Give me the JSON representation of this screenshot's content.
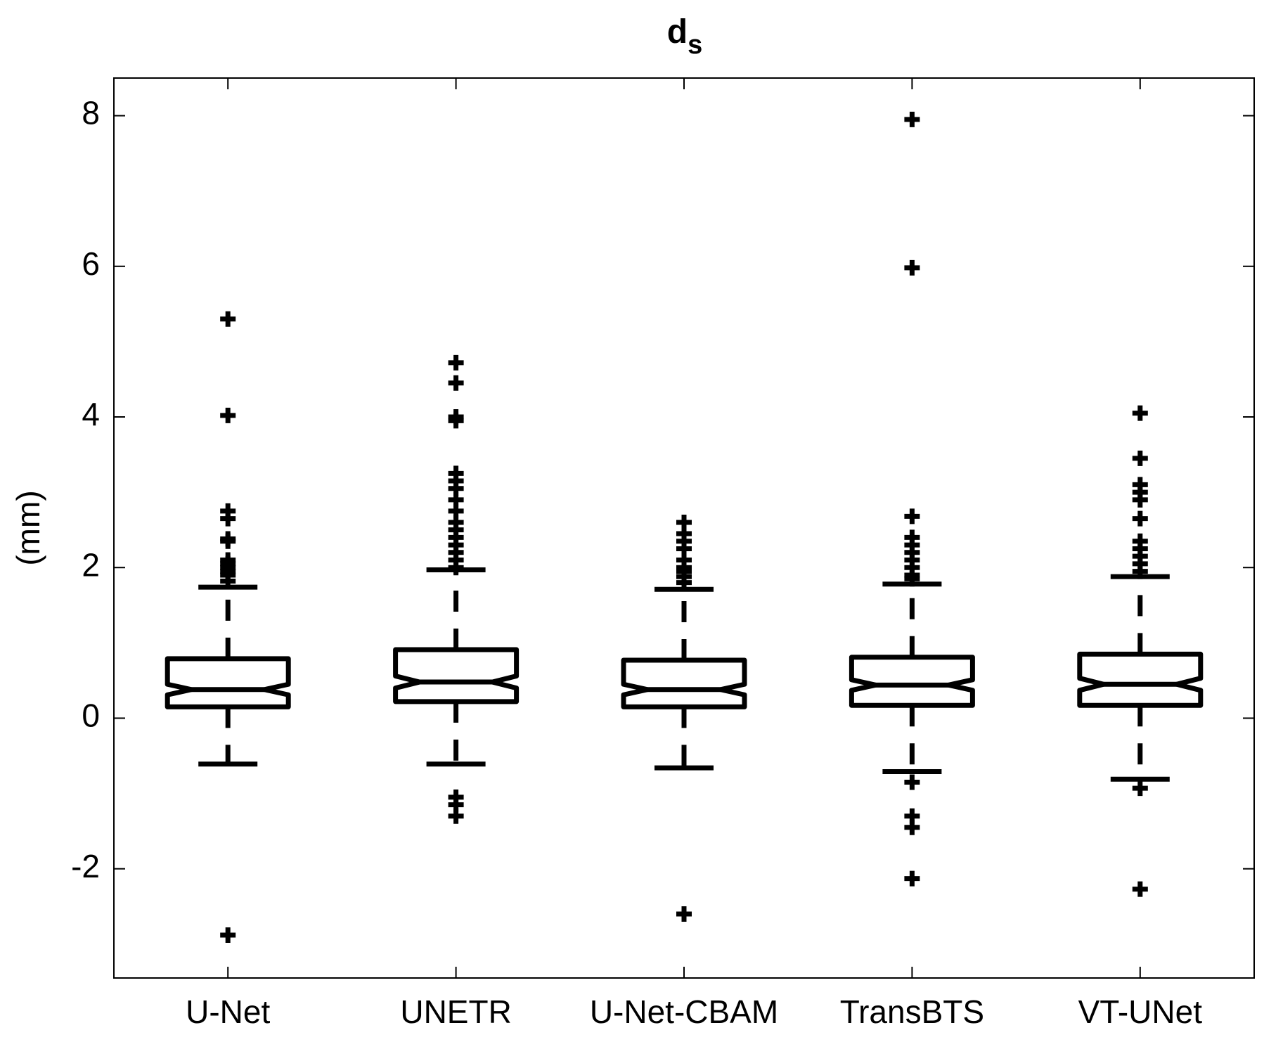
{
  "chart_data": {
    "type": "box",
    "title": "d",
    "title_subscript": "s",
    "ylabel": "(mm)",
    "categories": [
      "U-Net",
      "UNETR",
      "U-Net-CBAM",
      "TransBTS",
      "VT-UNet"
    ],
    "color": "#000000",
    "ylim": [
      -3.45,
      8.5
    ],
    "yticks": [
      -2,
      0,
      2,
      4,
      6,
      8
    ],
    "boxes": [
      {
        "whisker_low": -0.61,
        "q1": 0.15,
        "median": 0.38,
        "q3": 0.79,
        "whisker_high": 1.74,
        "notch": [
          0.31,
          0.45
        ],
        "outliers": [
          5.3,
          4.02,
          2.75,
          2.65,
          2.38,
          2.35,
          2.1,
          2.05,
          2.0,
          1.95,
          1.9,
          1.82,
          -2.88
        ]
      },
      {
        "whisker_low": -0.61,
        "q1": 0.22,
        "median": 0.48,
        "q3": 0.91,
        "whisker_high": 1.97,
        "notch": [
          0.4,
          0.56
        ],
        "outliers": [
          4.72,
          4.45,
          4.0,
          3.95,
          3.25,
          3.15,
          3.05,
          2.9,
          2.75,
          2.6,
          2.5,
          2.4,
          2.3,
          2.2,
          2.1,
          2.0,
          -1.05,
          -1.15,
          -1.3
        ]
      },
      {
        "whisker_low": -0.66,
        "q1": 0.15,
        "median": 0.38,
        "q3": 0.77,
        "whisker_high": 1.71,
        "notch": [
          0.31,
          0.45
        ],
        "outliers": [
          2.6,
          2.45,
          2.35,
          2.25,
          2.1,
          2.0,
          1.95,
          1.88,
          1.8,
          -2.6
        ]
      },
      {
        "whisker_low": -0.71,
        "q1": 0.17,
        "median": 0.44,
        "q3": 0.81,
        "whisker_high": 1.78,
        "notch": [
          0.37,
          0.51
        ],
        "outliers": [
          7.95,
          5.98,
          2.68,
          2.4,
          2.3,
          2.2,
          2.1,
          2.0,
          1.9,
          1.85,
          -0.85,
          -1.3,
          -1.45,
          -2.13
        ]
      },
      {
        "whisker_low": -0.81,
        "q1": 0.17,
        "median": 0.45,
        "q3": 0.85,
        "whisker_high": 1.88,
        "notch": [
          0.37,
          0.53
        ],
        "outliers": [
          4.05,
          3.45,
          3.1,
          3.0,
          2.9,
          2.65,
          2.35,
          2.25,
          2.15,
          2.05,
          1.95,
          -0.93,
          -2.27
        ]
      }
    ]
  }
}
